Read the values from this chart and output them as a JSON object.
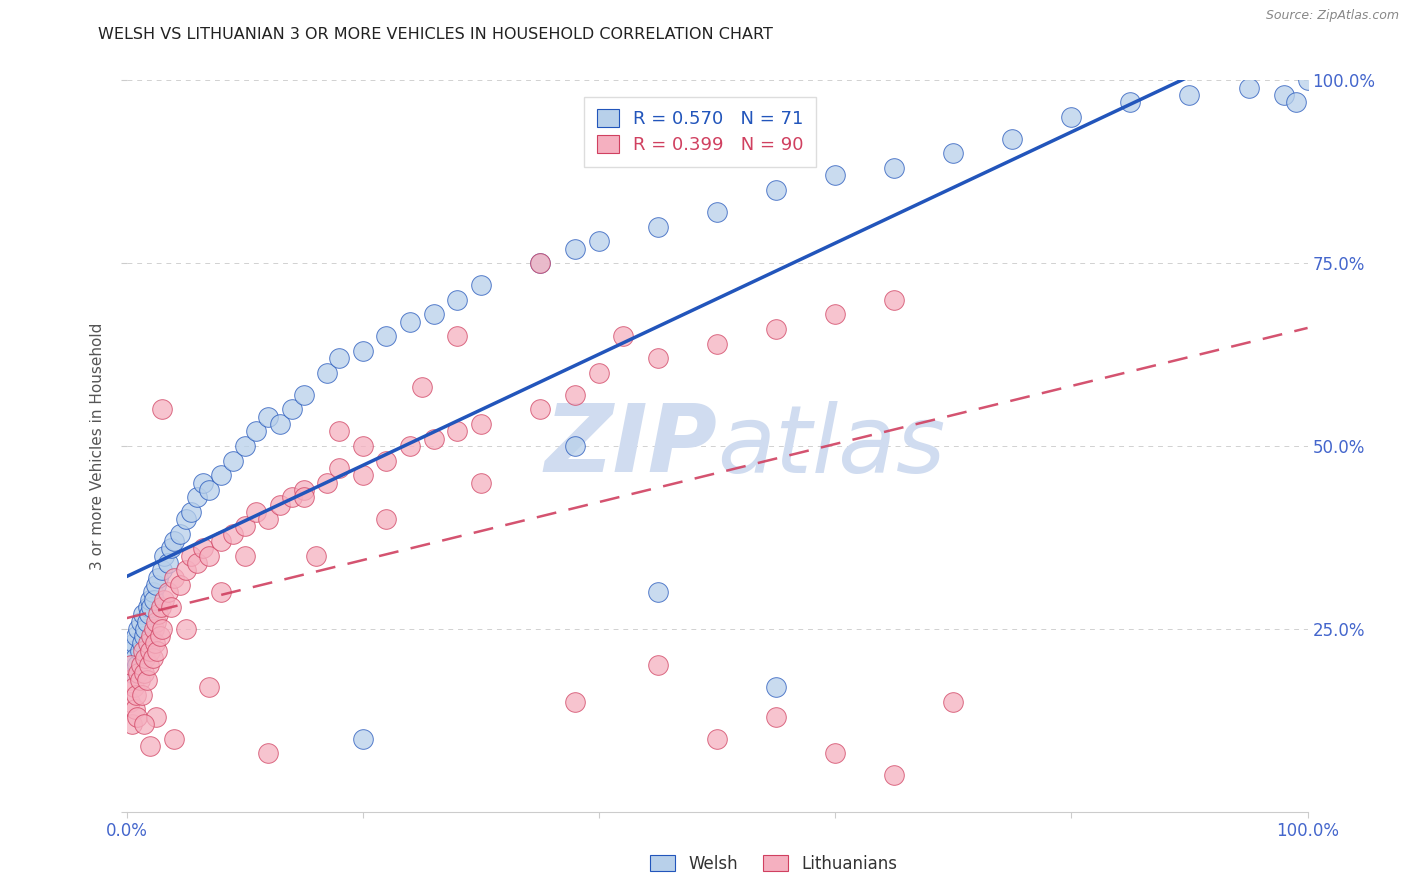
{
  "title": "WELSH VS LITHUANIAN 3 OR MORE VEHICLES IN HOUSEHOLD CORRELATION CHART",
  "source": "Source: ZipAtlas.com",
  "ylabel": "3 or more Vehicles in Household",
  "welsh_R": 0.57,
  "welsh_N": 71,
  "lith_R": 0.399,
  "lith_N": 90,
  "welsh_color": "#b8d0ea",
  "lith_color": "#f5b0c0",
  "welsh_line_color": "#2255bb",
  "lith_line_color": "#d04060",
  "background_color": "#ffffff",
  "grid_color": "#cccccc",
  "watermark_color": "#d0dcf0",
  "axis_label_color": "#4466cc",
  "title_color": "#222222",
  "welsh_x": [
    0.3,
    0.4,
    0.5,
    0.6,
    0.7,
    0.8,
    0.9,
    1.0,
    1.1,
    1.2,
    1.3,
    1.4,
    1.5,
    1.6,
    1.7,
    1.8,
    1.9,
    2.0,
    2.1,
    2.2,
    2.3,
    2.5,
    2.7,
    3.0,
    3.2,
    3.5,
    3.8,
    4.0,
    4.5,
    5.0,
    5.5,
    6.0,
    6.5,
    7.0,
    8.0,
    9.0,
    10.0,
    11.0,
    12.0,
    13.0,
    14.0,
    15.0,
    17.0,
    18.0,
    20.0,
    22.0,
    24.0,
    26.0,
    28.0,
    30.0,
    35.0,
    38.0,
    40.0,
    45.0,
    50.0,
    55.0,
    60.0,
    65.0,
    70.0,
    75.0,
    80.0,
    85.0,
    90.0,
    95.0,
    98.0,
    99.0,
    100.0,
    55.0,
    45.0,
    38.0,
    20.0
  ],
  "welsh_y": [
    20.0,
    22.0,
    19.0,
    23.0,
    21.0,
    24.0,
    20.0,
    25.0,
    22.0,
    26.0,
    23.0,
    27.0,
    24.0,
    25.0,
    26.0,
    28.0,
    27.0,
    29.0,
    28.0,
    30.0,
    29.0,
    31.0,
    32.0,
    33.0,
    35.0,
    34.0,
    36.0,
    37.0,
    38.0,
    40.0,
    41.0,
    43.0,
    45.0,
    44.0,
    46.0,
    48.0,
    50.0,
    52.0,
    54.0,
    53.0,
    55.0,
    57.0,
    60.0,
    62.0,
    63.0,
    65.0,
    67.0,
    68.0,
    70.0,
    72.0,
    75.0,
    77.0,
    78.0,
    80.0,
    82.0,
    85.0,
    87.0,
    88.0,
    90.0,
    92.0,
    95.0,
    97.0,
    98.0,
    99.0,
    98.0,
    97.0,
    100.0,
    17.0,
    30.0,
    50.0,
    10.0
  ],
  "lith_x": [
    0.2,
    0.3,
    0.4,
    0.5,
    0.6,
    0.7,
    0.8,
    0.9,
    1.0,
    1.1,
    1.2,
    1.3,
    1.4,
    1.5,
    1.6,
    1.7,
    1.8,
    1.9,
    2.0,
    2.1,
    2.2,
    2.3,
    2.4,
    2.5,
    2.6,
    2.7,
    2.8,
    2.9,
    3.0,
    3.2,
    3.5,
    3.8,
    4.0,
    4.5,
    5.0,
    5.5,
    6.0,
    6.5,
    7.0,
    8.0,
    9.0,
    10.0,
    11.0,
    12.0,
    13.0,
    14.0,
    15.0,
    17.0,
    18.0,
    20.0,
    22.0,
    24.0,
    26.0,
    28.0,
    30.0,
    35.0,
    38.0,
    40.0,
    45.0,
    50.0,
    55.0,
    60.0,
    65.0,
    28.0,
    20.0,
    15.0,
    10.0,
    8.0,
    5.0,
    3.0,
    35.0,
    42.0,
    25.0,
    18.0,
    12.0,
    7.0,
    4.0,
    2.5,
    2.0,
    1.5,
    22.0,
    16.0,
    30.0,
    38.0,
    45.0,
    50.0,
    55.0,
    60.0,
    65.0,
    70.0
  ],
  "lith_y": [
    18.0,
    15.0,
    20.0,
    12.0,
    17.0,
    14.0,
    16.0,
    13.0,
    19.0,
    18.0,
    20.0,
    16.0,
    22.0,
    19.0,
    21.0,
    18.0,
    23.0,
    20.0,
    22.0,
    24.0,
    21.0,
    25.0,
    23.0,
    26.0,
    22.0,
    27.0,
    24.0,
    28.0,
    25.0,
    29.0,
    30.0,
    28.0,
    32.0,
    31.0,
    33.0,
    35.0,
    34.0,
    36.0,
    35.0,
    37.0,
    38.0,
    39.0,
    41.0,
    40.0,
    42.0,
    43.0,
    44.0,
    45.0,
    47.0,
    46.0,
    48.0,
    50.0,
    51.0,
    52.0,
    53.0,
    55.0,
    57.0,
    60.0,
    62.0,
    64.0,
    66.0,
    68.0,
    70.0,
    65.0,
    50.0,
    43.0,
    35.0,
    30.0,
    25.0,
    55.0,
    75.0,
    65.0,
    58.0,
    52.0,
    8.0,
    17.0,
    10.0,
    13.0,
    9.0,
    12.0,
    40.0,
    35.0,
    45.0,
    15.0,
    20.0,
    10.0,
    13.0,
    8.0,
    5.0,
    15.0
  ]
}
